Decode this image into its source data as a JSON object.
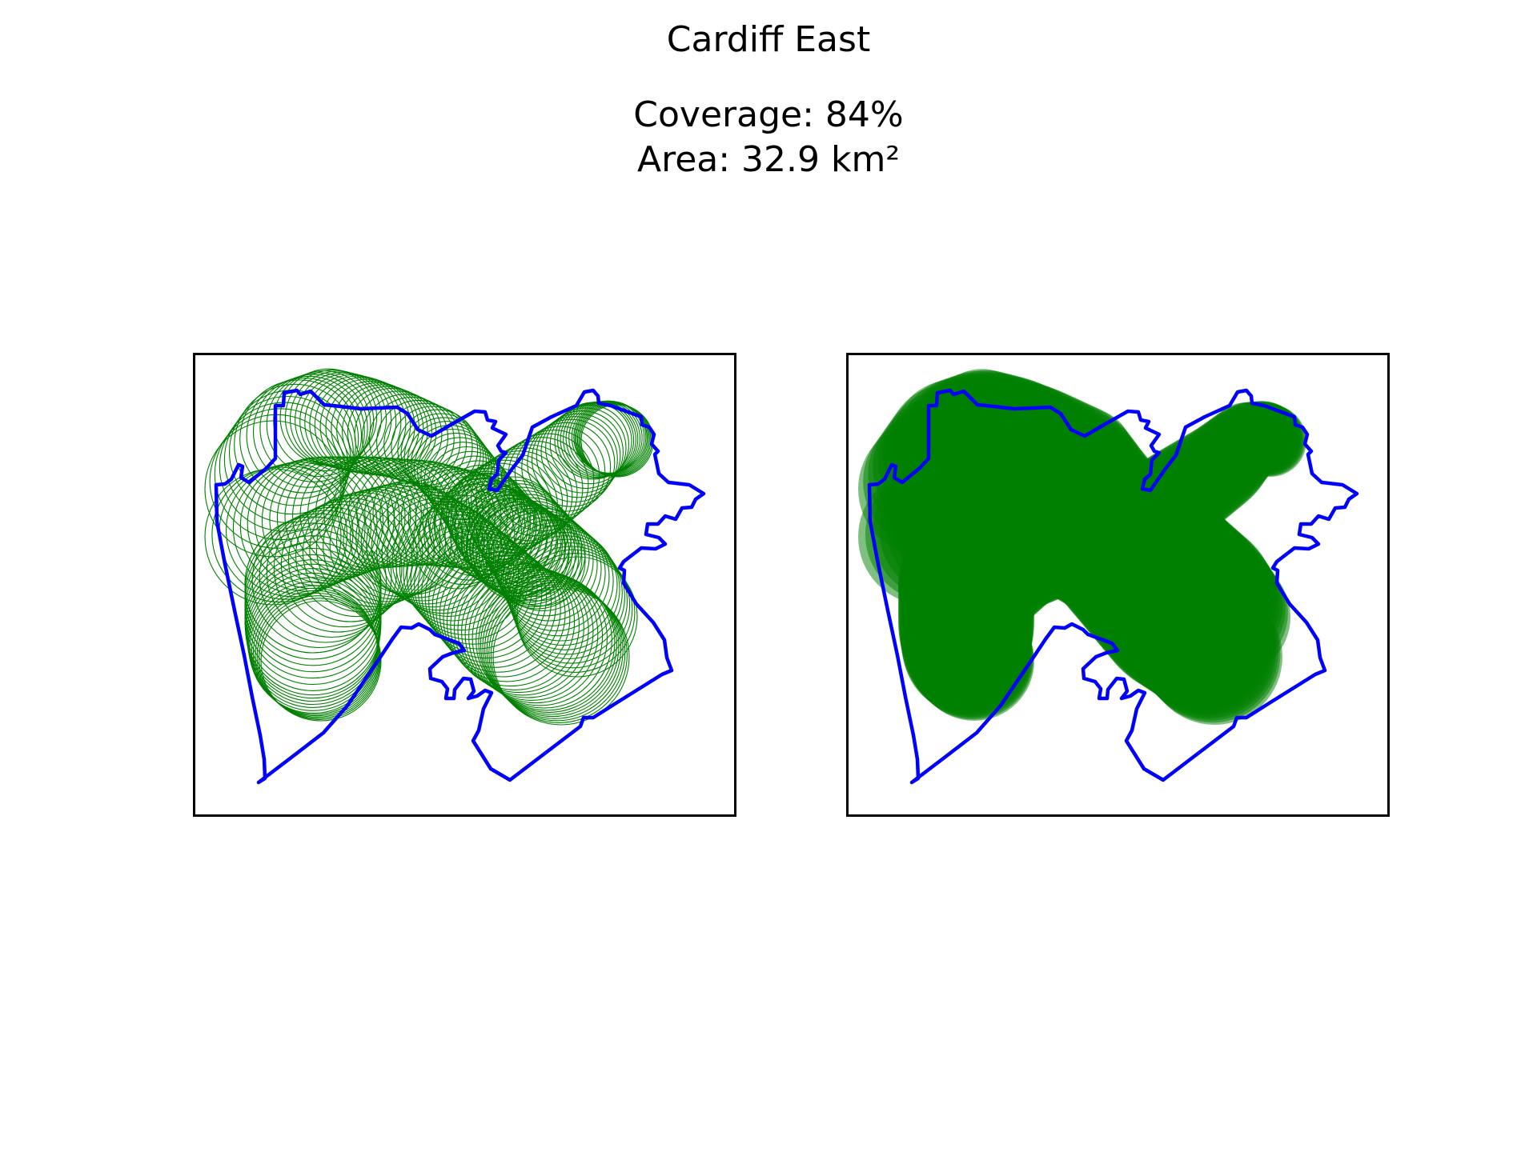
{
  "title": "Cardiff East",
  "coverage_line": "Coverage: 84%",
  "area_line": "Area: 32.9 km²",
  "coverage_percent": 84,
  "area_km2": 32.9,
  "colors": {
    "boundary": "#0000ff",
    "coverage": "#008000",
    "frame": "#000000",
    "background": "#ffffff"
  },
  "panels": [
    {
      "name": "individual-buffers",
      "style": "outline"
    },
    {
      "name": "merged-coverage",
      "style": "filled"
    }
  ]
}
